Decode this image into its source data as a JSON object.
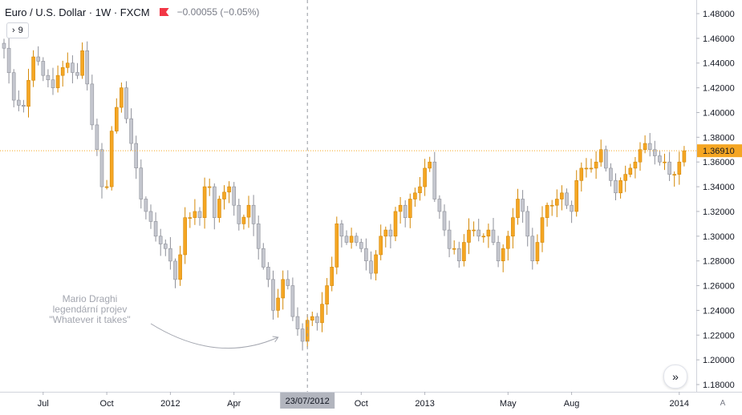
{
  "legend": {
    "symbol": "Euro / U.S. Dollar",
    "interval": "1W",
    "exchange": "FXCM",
    "change": "−0.00055 (−0.05%)"
  },
  "indicators_button": {
    "icon": "chevron-right-icon",
    "count": "9"
  },
  "scroll_button": {
    "icon": "double-chevron-right-icon"
  },
  "auto_scale_label": "A",
  "chart_data": {
    "type": "candlestick",
    "symbol": "EURUSD",
    "timeframe": "1W",
    "y_axis": {
      "min": 1.18,
      "max": 1.48,
      "step": 0.02,
      "decimals": 5,
      "ticks": [
        "1.48000",
        "1.46000",
        "1.44000",
        "1.42000",
        "1.40000",
        "1.38000",
        "1.36000",
        "1.34000",
        "1.32000",
        "1.30000",
        "1.28000",
        "1.26000",
        "1.24000",
        "1.22000",
        "1.20000",
        "1.18000"
      ]
    },
    "x_axis": {
      "ticks": [
        {
          "label": "Jul",
          "bar": 8
        },
        {
          "label": "Oct",
          "bar": 21
        },
        {
          "label": "2012",
          "bar": 34
        },
        {
          "label": "Apr",
          "bar": 47
        },
        {
          "label": "Oct",
          "bar": 73
        },
        {
          "label": "2013",
          "bar": 86
        },
        {
          "label": "May",
          "bar": 103
        },
        {
          "label": "Aug",
          "bar": 116
        },
        {
          "label": "2014",
          "bar": 138
        }
      ]
    },
    "last_price": "1.36910",
    "crosshair": {
      "bar": 62,
      "date_label": "23/07/2012"
    },
    "annotation": {
      "lines": [
        "Mario Draghi",
        "legendární projev",
        "\"Whatever it takes\""
      ],
      "arrow_to_bar": 57
    },
    "colors": {
      "up": "#f5a623",
      "down": "#c5c7cf",
      "axis_text": "#131722",
      "grid": "#f0f3fa"
    },
    "grid": false,
    "anchors": [
      [
        0,
        1.452
      ],
      [
        2,
        1.41
      ],
      [
        4,
        1.405
      ],
      [
        6,
        1.445
      ],
      [
        8,
        1.43
      ],
      [
        10,
        1.42
      ],
      [
        11,
        1.43
      ],
      [
        13,
        1.44
      ],
      [
        15,
        1.43
      ],
      [
        16,
        1.45
      ],
      [
        18,
        1.39
      ],
      [
        19,
        1.37
      ],
      [
        20,
        1.34
      ],
      [
        21,
        1.34
      ],
      [
        22,
        1.385
      ],
      [
        24,
        1.42
      ],
      [
        25,
        1.395
      ],
      [
        26,
        1.375
      ],
      [
        28,
        1.33
      ],
      [
        29,
        1.32
      ],
      [
        31,
        1.3
      ],
      [
        33,
        1.29
      ],
      [
        35,
        1.265
      ],
      [
        36,
        1.285
      ],
      [
        37,
        1.315
      ],
      [
        39,
        1.32
      ],
      [
        40,
        1.315
      ],
      [
        41,
        1.34
      ],
      [
        42,
        1.34
      ],
      [
        43,
        1.315
      ],
      [
        44,
        1.33
      ],
      [
        46,
        1.34
      ],
      [
        47,
        1.325
      ],
      [
        48,
        1.31
      ],
      [
        50,
        1.325
      ],
      [
        51,
        1.31
      ],
      [
        52,
        1.29
      ],
      [
        53,
        1.275
      ],
      [
        54,
        1.265
      ],
      [
        55,
        1.24
      ],
      [
        56,
        1.25
      ],
      [
        57,
        1.265
      ],
      [
        58,
        1.26
      ],
      [
        59,
        1.235
      ],
      [
        60,
        1.225
      ],
      [
        61,
        1.215
      ],
      [
        62,
        1.232
      ],
      [
        63,
        1.235
      ],
      [
        64,
        1.23
      ],
      [
        65,
        1.245
      ],
      [
        66,
        1.26
      ],
      [
        67,
        1.275
      ],
      [
        68,
        1.31
      ],
      [
        69,
        1.3
      ],
      [
        70,
        1.295
      ],
      [
        71,
        1.3
      ],
      [
        72,
        1.295
      ],
      [
        73,
        1.29
      ],
      [
        74,
        1.28
      ],
      [
        75,
        1.27
      ],
      [
        76,
        1.285
      ],
      [
        77,
        1.3
      ],
      [
        78,
        1.305
      ],
      [
        79,
        1.3
      ],
      [
        80,
        1.32
      ],
      [
        81,
        1.325
      ],
      [
        82,
        1.315
      ],
      [
        83,
        1.33
      ],
      [
        84,
        1.335
      ],
      [
        85,
        1.34
      ],
      [
        86,
        1.355
      ],
      [
        87,
        1.36
      ],
      [
        88,
        1.33
      ],
      [
        89,
        1.32
      ],
      [
        90,
        1.305
      ],
      [
        91,
        1.29
      ],
      [
        92,
        1.29
      ],
      [
        93,
        1.28
      ],
      [
        94,
        1.295
      ],
      [
        95,
        1.305
      ],
      [
        96,
        1.305
      ],
      [
        97,
        1.3
      ],
      [
        98,
        1.3
      ],
      [
        99,
        1.305
      ],
      [
        100,
        1.295
      ],
      [
        101,
        1.28
      ],
      [
        102,
        1.29
      ],
      [
        103,
        1.3
      ],
      [
        104,
        1.315
      ],
      [
        105,
        1.33
      ],
      [
        106,
        1.32
      ],
      [
        107,
        1.3
      ],
      [
        108,
        1.28
      ],
      [
        109,
        1.295
      ],
      [
        110,
        1.315
      ],
      [
        111,
        1.325
      ],
      [
        112,
        1.325
      ],
      [
        113,
        1.33
      ],
      [
        114,
        1.335
      ],
      [
        115,
        1.325
      ],
      [
        116,
        1.32
      ],
      [
        117,
        1.345
      ],
      [
        118,
        1.355
      ],
      [
        119,
        1.355
      ],
      [
        120,
        1.355
      ],
      [
        121,
        1.36
      ],
      [
        122,
        1.37
      ],
      [
        123,
        1.355
      ],
      [
        124,
        1.345
      ],
      [
        125,
        1.335
      ],
      [
        126,
        1.345
      ],
      [
        127,
        1.35
      ],
      [
        128,
        1.355
      ],
      [
        129,
        1.36
      ],
      [
        130,
        1.37
      ],
      [
        131,
        1.375
      ],
      [
        132,
        1.37
      ],
      [
        133,
        1.365
      ],
      [
        134,
        1.36
      ],
      [
        135,
        1.36
      ],
      [
        136,
        1.35
      ],
      [
        137,
        1.35
      ],
      [
        138,
        1.36
      ],
      [
        139,
        1.369
      ]
    ]
  }
}
